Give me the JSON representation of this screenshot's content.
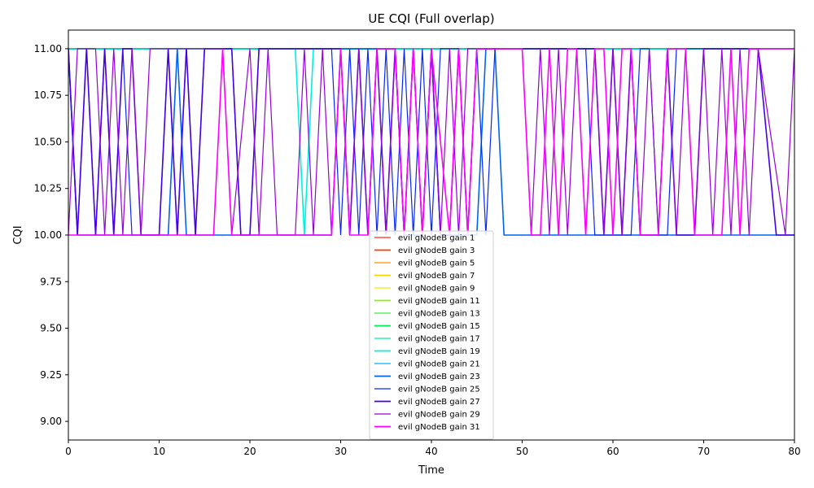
{
  "chart_data": {
    "type": "line",
    "title": "UE CQI (Full overlap)",
    "xlabel": "Time",
    "ylabel": "CQI",
    "xlim": [
      0,
      80
    ],
    "ylim": [
      8.9,
      11.1
    ],
    "xticks": [
      0,
      10,
      20,
      30,
      40,
      50,
      60,
      70,
      80
    ],
    "yticks": [
      "9.00",
      "9.25",
      "9.50",
      "9.75",
      "10.00",
      "10.25",
      "10.50",
      "10.75",
      "11.00"
    ],
    "ytick_values": [
      9.0,
      9.25,
      9.5,
      9.75,
      10.0,
      10.25,
      10.5,
      10.75,
      11.0
    ],
    "grid": false,
    "legend_position": "lower-center",
    "series": [
      {
        "name": "evil gNodeB gain 1",
        "color": "#ff2a1a",
        "x": [
          0,
          80
        ],
        "y": [
          11,
          11
        ]
      },
      {
        "name": "evil gNodeB gain 3",
        "color": "#ff3d00",
        "x": [
          0,
          80
        ],
        "y": [
          11,
          11
        ]
      },
      {
        "name": "evil gNodeB gain 5",
        "color": "#ff8c00",
        "x": [
          0,
          80
        ],
        "y": [
          11,
          11
        ]
      },
      {
        "name": "evil gNodeB gain 7",
        "color": "#ffd200",
        "x": [
          0,
          80
        ],
        "y": [
          11,
          11
        ]
      },
      {
        "name": "evil gNodeB gain 9",
        "color": "#e6f000",
        "x": [
          0,
          80
        ],
        "y": [
          11,
          11
        ]
      },
      {
        "name": "evil gNodeB gain 11",
        "color": "#8cf000",
        "x": [
          0,
          80
        ],
        "y": [
          11,
          11
        ]
      },
      {
        "name": "evil gNodeB gain 13",
        "color": "#3cf03c",
        "x": [
          0,
          80
        ],
        "y": [
          11,
          11
        ]
      },
      {
        "name": "evil gNodeB gain 15",
        "color": "#00f050",
        "x": [
          0,
          80
        ],
        "y": [
          11,
          11
        ]
      },
      {
        "name": "evil gNodeB gain 17",
        "color": "#00f0a0",
        "x": [
          0,
          80
        ],
        "y": [
          11,
          11
        ]
      },
      {
        "name": "evil gNodeB gain 19",
        "color": "#00f0dc",
        "x": [
          0,
          25,
          26,
          27,
          70,
          71,
          80
        ],
        "y": [
          11,
          11,
          10,
          11,
          11,
          11,
          11
        ]
      },
      {
        "name": "evil gNodeB gain 21",
        "color": "#00b4f0",
        "x": [
          0,
          80
        ],
        "y": [
          11,
          11
        ]
      },
      {
        "name": "evil gNodeB gain 23",
        "color": "#0064f0",
        "x": [
          0,
          1,
          11,
          12,
          13,
          29,
          30,
          36,
          37,
          39,
          40,
          41,
          45,
          46,
          47,
          48,
          80
        ],
        "y": [
          11,
          10,
          10,
          11,
          10,
          10,
          11,
          11,
          10,
          10,
          11,
          10,
          10,
          11,
          11,
          10,
          10
        ]
      },
      {
        "name": "evil gNodeB gain 25",
        "color": "#0a28f0",
        "x": [
          0,
          1,
          2,
          3,
          4,
          5,
          6,
          7,
          8,
          10,
          11,
          12,
          13,
          14,
          15,
          16,
          17,
          18,
          19,
          20,
          21,
          22,
          29,
          30,
          31,
          32,
          33,
          34,
          35,
          36,
          37,
          38,
          39,
          40,
          41,
          42,
          43,
          44,
          45,
          46,
          47,
          48,
          57,
          58,
          62,
          63,
          64,
          65,
          66,
          67,
          68,
          69,
          70,
          80
        ],
        "y": [
          11,
          10,
          11,
          10,
          11,
          10,
          11,
          10,
          10,
          10,
          11,
          10,
          11,
          10,
          11,
          11,
          11,
          11,
          10,
          10,
          11,
          11,
          11,
          10,
          11,
          10,
          11,
          10,
          11,
          10,
          11,
          10,
          11,
          10,
          11,
          11,
          11,
          10,
          11,
          10,
          11,
          11,
          11,
          10,
          10,
          11,
          11,
          10,
          10,
          11,
          11,
          11,
          11,
          11
        ]
      },
      {
        "name": "evil gNodeB gain 27",
        "color": "#4600e6",
        "x": [
          0,
          1,
          2,
          3,
          4,
          5,
          6,
          7,
          8,
          10,
          11,
          12,
          13,
          14,
          15,
          18,
          19,
          20,
          21,
          30,
          31,
          32,
          33,
          34,
          35,
          36,
          37,
          38,
          39,
          40,
          41,
          42,
          43,
          44,
          45,
          58,
          59,
          60,
          61,
          62,
          63,
          65,
          66,
          67,
          69,
          70,
          76,
          78,
          80
        ],
        "y": [
          11,
          10,
          11,
          10,
          11,
          10,
          11,
          11,
          10,
          10,
          11,
          10,
          11,
          10,
          11,
          11,
          10,
          10,
          11,
          11,
          10,
          11,
          10,
          11,
          10,
          11,
          10,
          11,
          10,
          11,
          10,
          10,
          11,
          10,
          11,
          11,
          10,
          11,
          10,
          11,
          10,
          10,
          11,
          10,
          10,
          11,
          11,
          10,
          10
        ]
      },
      {
        "name": "evil gNodeB gain 29",
        "color": "#9600dc",
        "x": [
          0,
          1,
          3,
          4,
          5,
          6,
          7,
          8,
          9,
          10,
          17,
          18,
          20,
          21,
          22,
          23,
          25,
          26,
          27,
          28,
          29,
          30,
          31,
          32,
          33,
          34,
          35,
          36,
          37,
          38,
          39,
          40,
          41,
          42,
          43,
          44,
          45,
          50,
          51,
          52,
          53,
          54,
          55,
          56,
          57,
          58,
          59,
          60,
          61,
          62,
          63,
          64,
          65,
          66,
          67,
          68,
          69,
          70,
          71,
          72,
          73,
          74,
          75,
          76,
          79,
          80
        ],
        "y": [
          10,
          11,
          11,
          10,
          11,
          10,
          11,
          10,
          11,
          11,
          11,
          10,
          11,
          10,
          11,
          10,
          10,
          11,
          10,
          11,
          10,
          11,
          10,
          11,
          10,
          11,
          10,
          11,
          10,
          11,
          10,
          11,
          10,
          11,
          10,
          11,
          11,
          11,
          10,
          11,
          10,
          11,
          10,
          11,
          10,
          11,
          10,
          11,
          10,
          11,
          10,
          11,
          10,
          11,
          10,
          11,
          10,
          11,
          10,
          11,
          10,
          11,
          10,
          11,
          10,
          11
        ]
      },
      {
        "name": "evil gNodeB gain 31",
        "color": "#ff00ff",
        "x": [
          0,
          16,
          17,
          18,
          29,
          30,
          31,
          33,
          34,
          36,
          37,
          38,
          39,
          40,
          42,
          43,
          44,
          45,
          50,
          51,
          52,
          53,
          54,
          55,
          56,
          57,
          58,
          59,
          60,
          61,
          62,
          63,
          64,
          65,
          66,
          67,
          68,
          69,
          71,
          72,
          73,
          74,
          75,
          80
        ],
        "y": [
          10,
          10,
          11,
          10,
          10,
          11,
          10,
          10,
          11,
          11,
          10,
          11,
          10,
          11,
          10,
          11,
          10,
          11,
          11,
          10,
          10,
          11,
          10,
          11,
          11,
          10,
          11,
          11,
          10,
          11,
          11,
          10,
          10,
          10,
          11,
          11,
          11,
          10,
          10,
          10,
          11,
          10,
          11,
          11
        ]
      }
    ]
  }
}
